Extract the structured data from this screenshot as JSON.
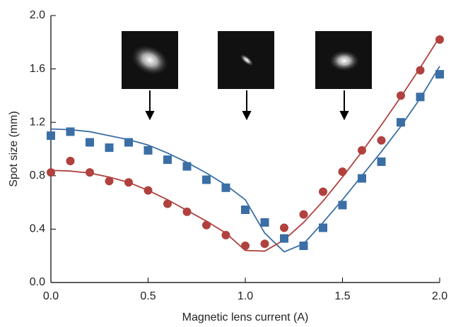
{
  "chart_data": {
    "type": "scatter",
    "x_label": "Magnetic lens current (A)",
    "y_label": "Spot size (mm)",
    "x": [
      0.0,
      0.1,
      0.2,
      0.3,
      0.4,
      0.5,
      0.6,
      0.7,
      0.8,
      0.9,
      1.0,
      1.1,
      1.2,
      1.3,
      1.4,
      1.5,
      1.6,
      1.7,
      1.8,
      1.9,
      2.0
    ],
    "series": [
      {
        "color": "#3a6ea5",
        "mode": "markers",
        "marker": "square",
        "values": [
          1.1,
          1.13,
          1.05,
          1.01,
          1.05,
          0.99,
          0.92,
          0.87,
          0.77,
          0.71,
          0.545,
          0.45,
          0.33,
          0.275,
          0.41,
          0.58,
          0.78,
          0.905,
          1.2,
          1.39,
          1.56
        ]
      },
      {
        "color": "#b0413e",
        "mode": "markers",
        "marker": "circle",
        "values": [
          0.825,
          0.91,
          0.825,
          0.76,
          0.75,
          0.69,
          0.59,
          0.53,
          0.43,
          0.355,
          0.275,
          0.29,
          0.41,
          0.51,
          0.68,
          0.83,
          0.99,
          1.065,
          1.4,
          1.59,
          1.82
        ]
      },
      {
        "color": "#3a6ea5",
        "mode": "line",
        "values": [
          1.15,
          1.145,
          1.13,
          1.1,
          1.07,
          1.03,
          0.97,
          0.9,
          0.82,
          0.73,
          0.62,
          0.37,
          0.23,
          0.29,
          0.45,
          0.62,
          0.8,
          0.98,
          1.17,
          1.38,
          1.62
        ]
      },
      {
        "color": "#b0413e",
        "mode": "line",
        "values": [
          0.84,
          0.835,
          0.82,
          0.79,
          0.75,
          0.69,
          0.62,
          0.54,
          0.46,
          0.37,
          0.24,
          0.235,
          0.32,
          0.45,
          0.61,
          0.79,
          0.98,
          1.18,
          1.39,
          1.61,
          1.84
        ]
      }
    ],
    "xlim": [
      0,
      2.0
    ],
    "xticks": [
      {
        "value": 0,
        "label": "0.0"
      },
      0.5,
      {
        "value": 1,
        "label": "1.0"
      },
      1.5,
      {
        "value": 2,
        "label": "2.0"
      }
    ],
    "ylim": [
      0,
      2.0
    ],
    "yticks": [
      {
        "value": 0,
        "label": "0.0"
      },
      0.4,
      0.8,
      1.2,
      1.6,
      {
        "value": 2,
        "label": "2.0"
      }
    ],
    "grid": false
  }
}
